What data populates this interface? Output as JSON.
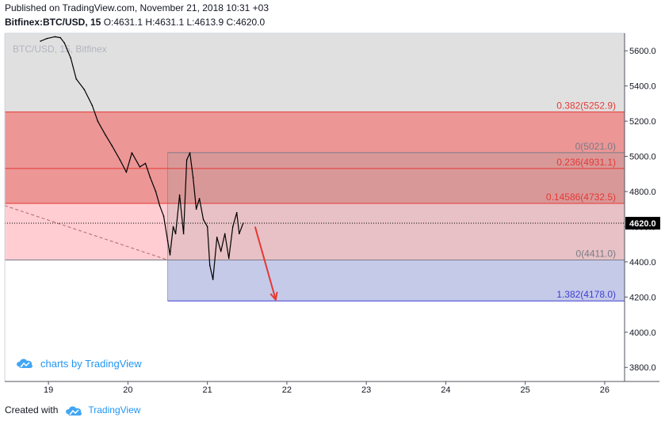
{
  "header": {
    "published": "Published on TradingView.com, November 21, 2018 10:31 +03",
    "symbol": "Bitfinex:BTC/USD, 15",
    "ohlc": "O:4631.1 H:4631.1 L:4613.9 C:4620.0"
  },
  "watermark": "BTC/USD, 15, Bitfinex",
  "branding": {
    "charts_by": "charts by TradingView"
  },
  "footer": {
    "created_with": "Created with",
    "brand": "TradingView"
  },
  "chart_data": {
    "type": "line",
    "series": [
      {
        "name": "",
        "x": [
          18.9,
          18.98,
          19.08,
          19.15,
          19.2,
          19.28,
          19.35,
          19.45,
          19.55,
          19.62,
          19.72,
          19.8,
          19.9,
          19.98,
          20.05,
          20.15,
          20.22,
          20.28,
          20.35,
          20.4,
          20.45,
          20.5,
          20.53,
          20.57,
          20.6,
          20.65,
          20.7,
          20.74,
          20.78,
          20.82,
          20.86,
          20.9,
          20.95,
          21.0,
          21.03,
          21.07,
          21.12,
          21.17,
          21.22,
          21.27,
          21.32,
          21.37,
          21.4,
          21.45
        ],
        "values": [
          5655,
          5670,
          5680,
          5675,
          5645,
          5560,
          5440,
          5380,
          5290,
          5200,
          5120,
          5060,
          4980,
          4910,
          5020,
          4940,
          4960,
          4880,
          4800,
          4720,
          4660,
          4520,
          4440,
          4600,
          4560,
          4780,
          4560,
          4980,
          5020,
          4880,
          4700,
          4760,
          4640,
          4600,
          4380,
          4300,
          4540,
          4460,
          4560,
          4420,
          4600,
          4680,
          4560,
          4620
        ]
      }
    ],
    "x_ticks": [
      "19",
      "20",
      "21",
      "22",
      "23",
      "24",
      "25",
      "26"
    ],
    "y_ticks": [
      "5600.0",
      "5400.0",
      "5200.0",
      "5000.0",
      "4800.0",
      "4600.0",
      "4400.0",
      "4200.0",
      "4000.0",
      "3800.0"
    ],
    "ylim": [
      3720,
      5700
    ],
    "xlim": [
      18.45,
      26.25
    ],
    "last_price": "4620.0",
    "fib_levels": [
      {
        "label": "0.382(5252.9)",
        "price": 5252.9,
        "color": "#e53935"
      },
      {
        "label": "0(5021.0)",
        "price": 5021.0,
        "color": "#787b86"
      },
      {
        "label": "0.236(4931.1)",
        "price": 4931.1,
        "color": "#e53935"
      },
      {
        "label": "0.14586(4732.5)",
        "price": 4732.5,
        "color": "#e53935"
      },
      {
        "label": "0(4411.0)",
        "price": 4411.0,
        "color": "#787b86"
      },
      {
        "label": "1.382(4178.0)",
        "price": 4178.0,
        "color": "#3f3fd4"
      }
    ],
    "colors": {
      "line": "#000000",
      "red_zone": "#e57373",
      "pink_zone": "#ffcdd2",
      "gray_zone": "#e0e0e0",
      "blue_zone": "#c5cae9",
      "arrow": "#e53935"
    }
  }
}
